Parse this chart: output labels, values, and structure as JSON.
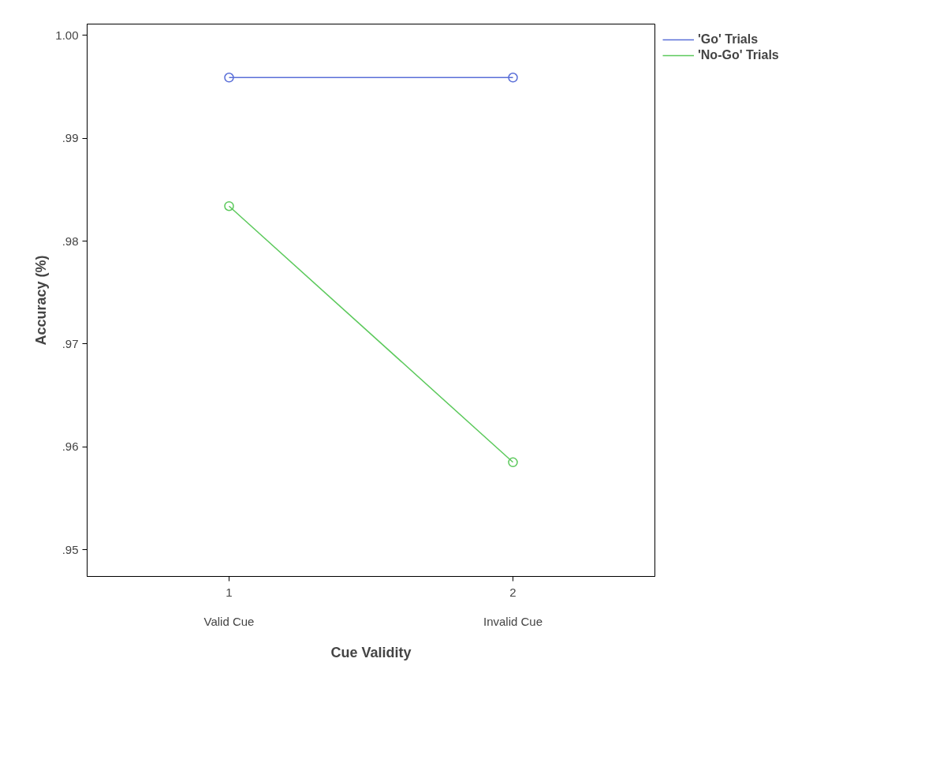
{
  "chart_data": {
    "type": "line",
    "xlabel": "Cue Validity",
    "ylabel": "Accuracy (%)",
    "categories": [
      "1\nValid Cue",
      "2\nInvalid Cue"
    ],
    "ylim": [
      0.9474,
      1.0011
    ],
    "yticks": [
      {
        "value": 0.95,
        "label": ".95"
      },
      {
        "value": 0.96,
        "label": ".96"
      },
      {
        "value": 0.97,
        "label": ".97"
      },
      {
        "value": 0.98,
        "label": ".98"
      },
      {
        "value": 0.99,
        "label": ".99"
      },
      {
        "value": 1.0,
        "label": "1.00"
      }
    ],
    "series": [
      {
        "name": "'Go' Trials",
        "color": "#5a6fd8",
        "values": [
          0.9959,
          0.9959
        ]
      },
      {
        "name": "'No-Go' Trials",
        "color": "#5cc95c",
        "values": [
          0.9834,
          0.9585
        ]
      }
    ],
    "marker": "circle",
    "line_style": "solid",
    "grid": false,
    "legend": "top right"
  }
}
